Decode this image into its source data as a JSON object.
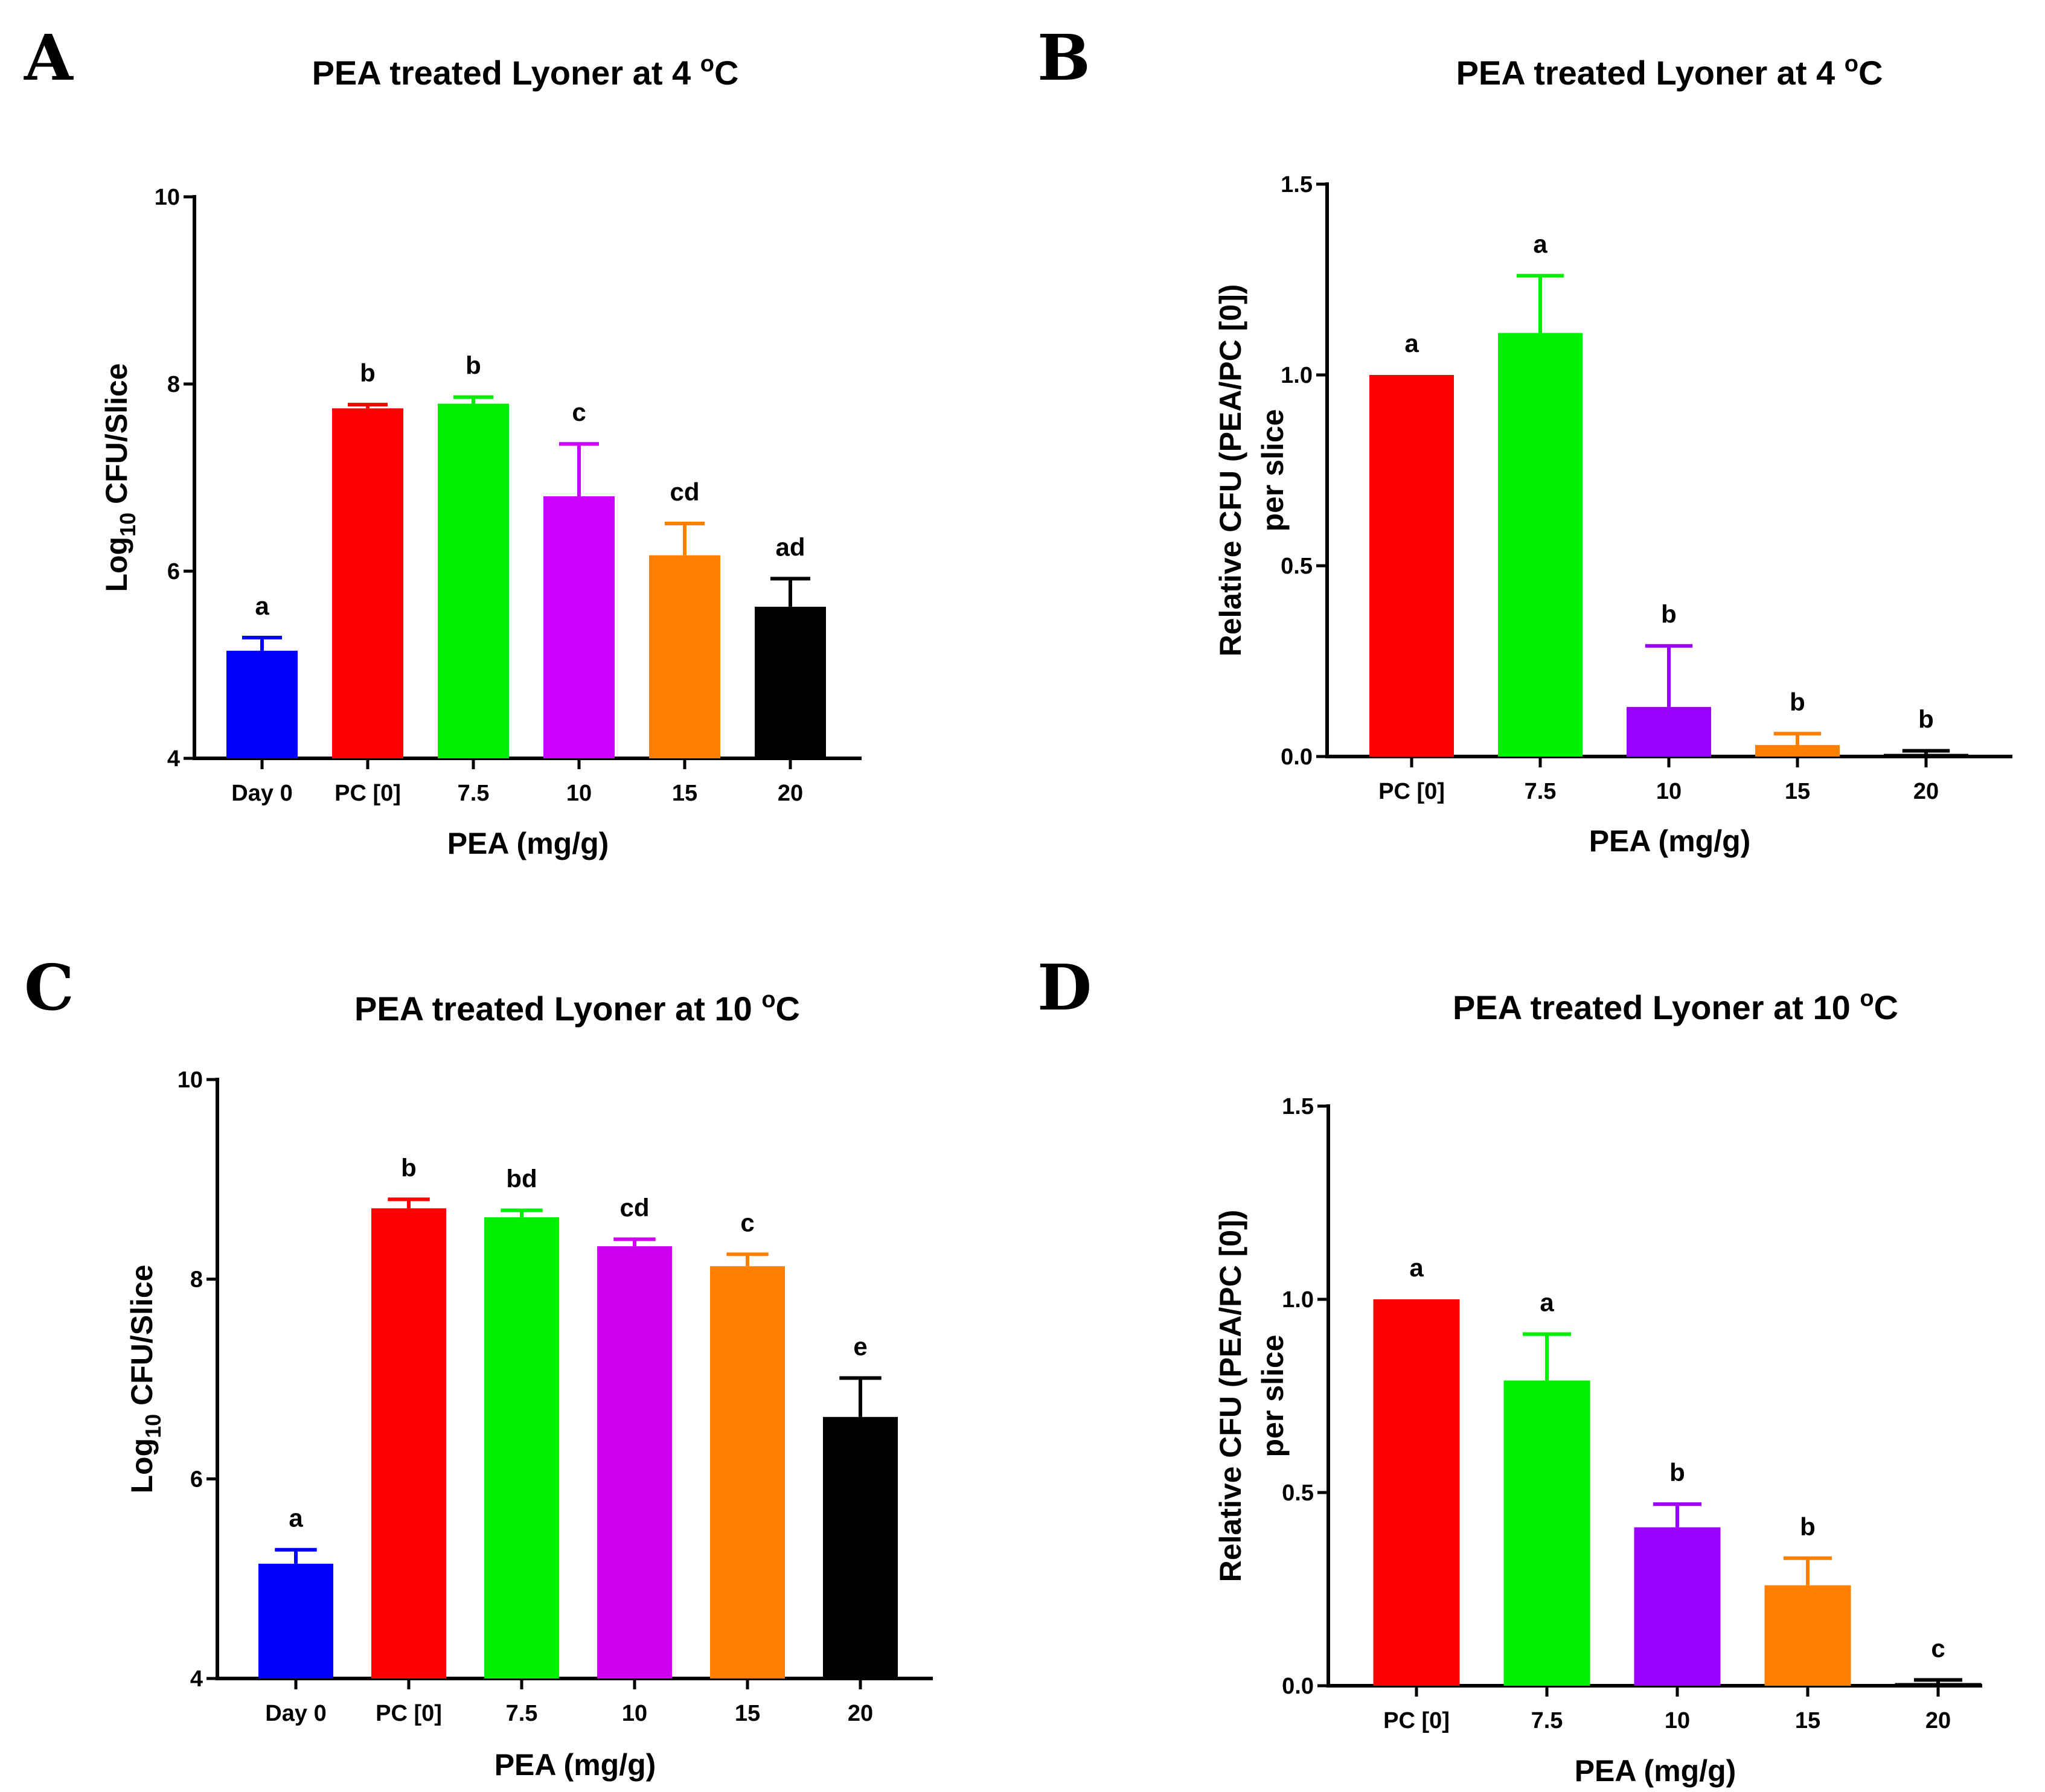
{
  "chart_data": [
    {
      "panel": "A",
      "type": "bar",
      "title": "PEA treated Lyoner at 4 ",
      "title_sup": "o",
      "title_end": "C",
      "xlabel": "PEA (mg/g)",
      "ylabel_prefix": "Log",
      "ylabel_sub": "10",
      "ylabel_suffix": " CFU/Slice",
      "ylim": [
        4,
        10
      ],
      "yticks": [
        "4",
        "6",
        "8",
        "10"
      ],
      "categories": [
        "Day 0",
        "PC [0]",
        "7.5",
        "10",
        "15",
        "20"
      ],
      "values": [
        5.15,
        7.74,
        7.79,
        6.8,
        6.17,
        5.62
      ],
      "errors": [
        0.14,
        0.04,
        0.07,
        0.56,
        0.34,
        0.3
      ],
      "letters": [
        "a",
        "b",
        "b",
        "c",
        "cd",
        "ad"
      ],
      "colors": [
        "#0000ff",
        "#ff0000",
        "#00ee00",
        "#cc00ff",
        "#ff8000",
        "#000000"
      ]
    },
    {
      "panel": "B",
      "type": "bar",
      "title": "PEA treated Lyoner at 4 ",
      "title_sup": "o",
      "title_end": "C",
      "xlabel": "PEA (mg/g)",
      "ylabel_line1": "Relative CFU (PEA/PC [0])",
      "ylabel_line2": "per slice",
      "ylim": [
        0,
        1.5
      ],
      "yticks": [
        "0.0",
        "0.5",
        "1.0",
        "1.5"
      ],
      "categories": [
        "PC [0]",
        "7.5",
        "10",
        "15",
        "20"
      ],
      "values": [
        1.0,
        1.11,
        0.13,
        0.03,
        0.007
      ],
      "errors": [
        0.0,
        0.15,
        0.16,
        0.03,
        0.008
      ],
      "letters": [
        "a",
        "a",
        "b",
        "b",
        "b"
      ],
      "colors": [
        "#ff0000",
        "#00ee00",
        "#9900ff",
        "#ff8000",
        "#000000"
      ]
    },
    {
      "panel": "C",
      "type": "bar",
      "title": "PEA treated Lyoner at 10 ",
      "title_sup": "o",
      "title_end": "C",
      "xlabel": "PEA (mg/g)",
      "ylabel_prefix": "Log",
      "ylabel_sub": "10",
      "ylabel_suffix": " CFU/Slice",
      "ylim": [
        4,
        10
      ],
      "yticks": [
        "4",
        "6",
        "8",
        "10"
      ],
      "categories": [
        "Day 0",
        "PC [0]",
        "7.5",
        "10",
        "15",
        "20"
      ],
      "values": [
        5.15,
        8.71,
        8.62,
        8.33,
        8.13,
        6.62
      ],
      "errors": [
        0.14,
        0.09,
        0.07,
        0.07,
        0.12,
        0.39
      ],
      "letters": [
        "a",
        "b",
        "bd",
        "cd",
        "c",
        "e"
      ],
      "colors": [
        "#0000ff",
        "#ff0000",
        "#00ee00",
        "#cc00ee",
        "#ff8000",
        "#000000"
      ]
    },
    {
      "panel": "D",
      "type": "bar",
      "title": "PEA treated Lyoner at 10 ",
      "title_sup": "o",
      "title_end": "C",
      "xlabel": "PEA (mg/g)",
      "ylabel_line1": "Relative CFU (PEA/PC [0])",
      "ylabel_line2": "per slice",
      "ylim": [
        0,
        1.5
      ],
      "yticks": [
        "0.0",
        "0.5",
        "1.0",
        "1.5"
      ],
      "categories": [
        "PC [0]",
        "7.5",
        "10",
        "15",
        "20"
      ],
      "values": [
        1.0,
        0.79,
        0.41,
        0.26,
        0.007
      ],
      "errors": [
        0.0,
        0.12,
        0.06,
        0.07,
        0.008
      ],
      "letters": [
        "a",
        "a",
        "b",
        "b",
        "c"
      ],
      "colors": [
        "#ff0000",
        "#00ee00",
        "#9900ff",
        "#ff8000",
        "#000000"
      ]
    }
  ]
}
